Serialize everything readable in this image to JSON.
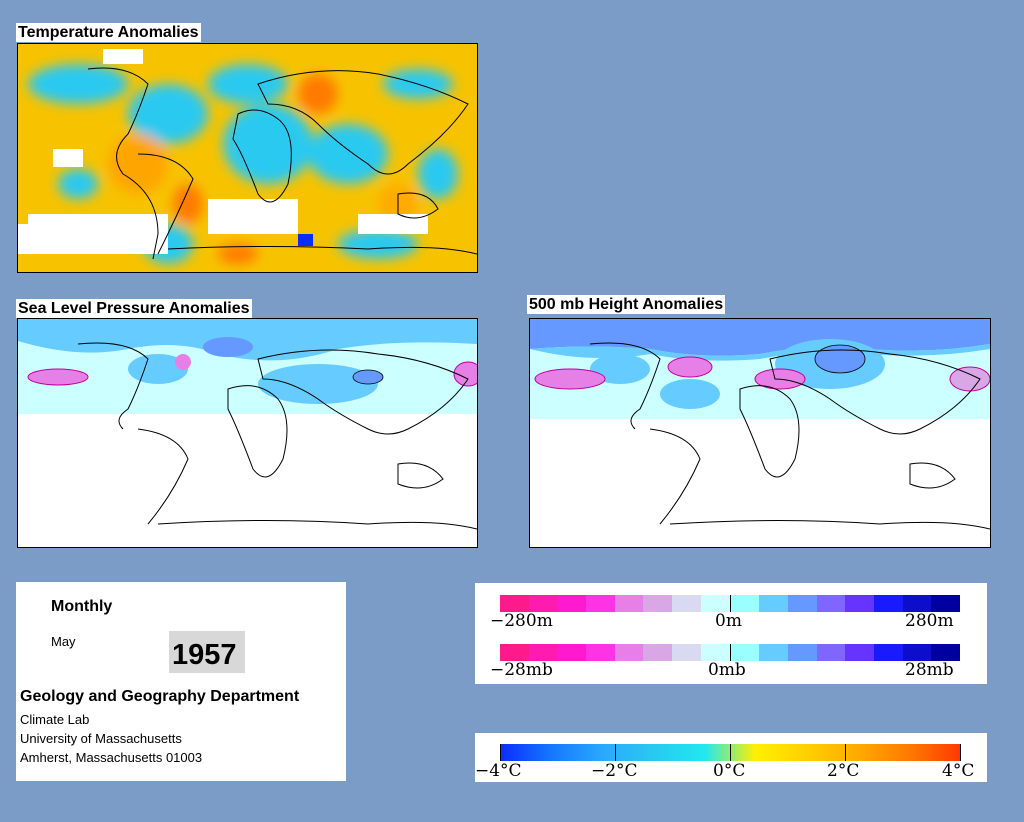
{
  "panels": {
    "temperature": {
      "title": "Temperature Anomalies"
    },
    "slp": {
      "title": "Sea Level Pressure Anomalies"
    },
    "height500": {
      "title": "500 mb Height Anomalies"
    }
  },
  "info": {
    "period": "Monthly",
    "month": "May",
    "year": "1957",
    "department": "Geology and Geography Department",
    "lab": "Climate Lab",
    "university": "University of Massachusetts",
    "address": "Amherst, Massachusetts 01003"
  },
  "legends": {
    "height": {
      "min": "−280m",
      "mid": "0m",
      "max": "280m"
    },
    "pressure": {
      "min": "−28mb",
      "mid": "0mb",
      "max": "28mb"
    },
    "temperature": {
      "ticks": [
        "−4°C",
        "−2°C",
        "0°C",
        "2°C",
        "4°C"
      ]
    }
  },
  "colors": {
    "background": "#7b9cc6",
    "anomaly_scale": [
      "#ff1a8c",
      "#ff1ab0",
      "#ff1ad0",
      "#ff33e6",
      "#e680e6",
      "#d9a6e6",
      "#d9d9f2",
      "#ccffff",
      "#99ffff",
      "#66ccff",
      "#6699ff",
      "#7f66ff",
      "#6633ff",
      "#1a1aff",
      "#0d0dcc",
      "#0000a0"
    ],
    "temp_scale": [
      "#0a2cff",
      "#1577ff",
      "#2aa8ff",
      "#29c9f0",
      "#20e8f0",
      "#fff000",
      "#ffd000",
      "#ffaa00",
      "#ff7a00",
      "#ff3a00"
    ]
  }
}
